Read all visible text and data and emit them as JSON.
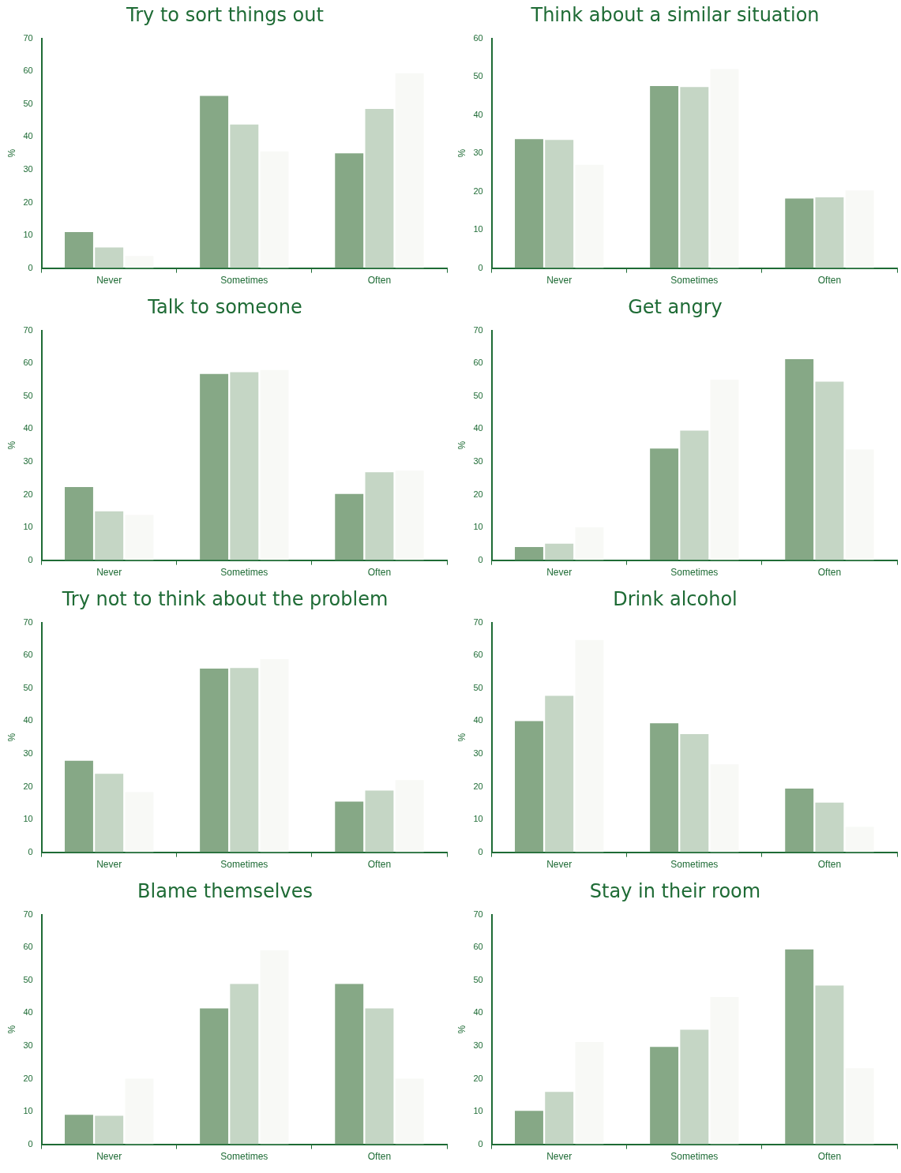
{
  "chart_data": [
    {
      "type": "bar",
      "title": "Try to sort things out",
      "ylabel": "%",
      "categories": [
        "Never",
        "Sometimes",
        "Often"
      ],
      "ylim": [
        0,
        70
      ],
      "yticks": [
        0,
        10,
        20,
        30,
        40,
        50,
        60,
        70
      ],
      "grid": false,
      "legend": false,
      "series": [
        {
          "color": "#86a886",
          "values": [
            11,
            52.5,
            35
          ]
        },
        {
          "color": "#c5d6c5",
          "values": [
            6.3,
            43.8,
            48.5
          ]
        },
        {
          "color": "#f8f9f6",
          "values": [
            3.7,
            35.6,
            59.4
          ]
        }
      ]
    },
    {
      "type": "bar",
      "title": "Think about a similar situation",
      "ylabel": "%",
      "categories": [
        "Never",
        "Sometimes",
        "Often"
      ],
      "ylim": [
        0,
        60
      ],
      "yticks": [
        0,
        10,
        20,
        30,
        40,
        50,
        60
      ],
      "grid": false,
      "legend": false,
      "series": [
        {
          "color": "#86a886",
          "values": [
            33.7,
            47.6,
            18.2
          ]
        },
        {
          "color": "#c5d6c5",
          "values": [
            33.5,
            47.3,
            18.5
          ]
        },
        {
          "color": "#f8f9f6",
          "values": [
            27,
            52,
            20.3
          ]
        }
      ]
    },
    {
      "type": "bar",
      "title": "Talk to someone",
      "ylabel": "%",
      "categories": [
        "Never",
        "Sometimes",
        "Often"
      ],
      "ylim": [
        0,
        70
      ],
      "yticks": [
        0,
        10,
        20,
        30,
        40,
        50,
        60,
        70
      ],
      "grid": false,
      "legend": false,
      "series": [
        {
          "color": "#86a886",
          "values": [
            22.3,
            56.8,
            20.2
          ]
        },
        {
          "color": "#c5d6c5",
          "values": [
            14.9,
            57.3,
            26.8
          ]
        },
        {
          "color": "#f8f9f6",
          "values": [
            13.8,
            58,
            27.3
          ]
        }
      ]
    },
    {
      "type": "bar",
      "title": "Get angry",
      "ylabel": "%",
      "categories": [
        "Never",
        "Sometimes",
        "Often"
      ],
      "ylim": [
        0,
        70
      ],
      "yticks": [
        0,
        10,
        20,
        30,
        40,
        50,
        60,
        70
      ],
      "grid": false,
      "legend": false,
      "series": [
        {
          "color": "#86a886",
          "values": [
            4,
            34,
            61.3
          ]
        },
        {
          "color": "#c5d6c5",
          "values": [
            5,
            39.5,
            54.4
          ]
        },
        {
          "color": "#f8f9f6",
          "values": [
            10,
            55,
            33.7
          ]
        }
      ]
    },
    {
      "type": "bar",
      "title": "Try not to think about the problem",
      "ylabel": "%",
      "categories": [
        "Never",
        "Sometimes",
        "Often"
      ],
      "ylim": [
        0,
        70
      ],
      "yticks": [
        0,
        10,
        20,
        30,
        40,
        50,
        60,
        70
      ],
      "grid": false,
      "legend": false,
      "series": [
        {
          "color": "#86a886",
          "values": [
            27.9,
            56,
            15.4
          ]
        },
        {
          "color": "#c5d6c5",
          "values": [
            23.9,
            56.2,
            18.8
          ]
        },
        {
          "color": "#f8f9f6",
          "values": [
            18.3,
            58.9,
            22
          ]
        }
      ]
    },
    {
      "type": "bar",
      "title": "Drink alcohol",
      "ylabel": "%",
      "categories": [
        "Never",
        "Sometimes",
        "Often"
      ],
      "ylim": [
        0,
        70
      ],
      "yticks": [
        0,
        10,
        20,
        30,
        40,
        50,
        60,
        70
      ],
      "grid": false,
      "legend": false,
      "series": [
        {
          "color": "#86a886",
          "values": [
            40,
            39.3,
            19.4
          ]
        },
        {
          "color": "#c5d6c5",
          "values": [
            47.7,
            36,
            15.1
          ]
        },
        {
          "color": "#f8f9f6",
          "values": [
            64.7,
            26.8,
            7.7
          ]
        }
      ]
    },
    {
      "type": "bar",
      "title": "Blame themselves",
      "ylabel": "%",
      "categories": [
        "Never",
        "Sometimes",
        "Often"
      ],
      "ylim": [
        0,
        70
      ],
      "yticks": [
        0,
        10,
        20,
        30,
        40,
        50,
        60,
        70
      ],
      "grid": false,
      "legend": false,
      "series": [
        {
          "color": "#86a886",
          "values": [
            9,
            41.4,
            48.9
          ]
        },
        {
          "color": "#c5d6c5",
          "values": [
            8.7,
            48.9,
            41.4
          ]
        },
        {
          "color": "#f8f9f6",
          "values": [
            20,
            59.2,
            20
          ]
        }
      ]
    },
    {
      "type": "bar",
      "title": "Stay in their room",
      "ylabel": "%",
      "categories": [
        "Never",
        "Sometimes",
        "Often"
      ],
      "ylim": [
        0,
        70
      ],
      "yticks": [
        0,
        10,
        20,
        30,
        40,
        50,
        60,
        70
      ],
      "grid": false,
      "legend": false,
      "series": [
        {
          "color": "#86a886",
          "values": [
            10.2,
            29.7,
            59.4
          ]
        },
        {
          "color": "#c5d6c5",
          "values": [
            16,
            34.9,
            48.4
          ]
        },
        {
          "color": "#f8f9f6",
          "values": [
            31.2,
            44.9,
            23.2
          ]
        }
      ]
    }
  ]
}
